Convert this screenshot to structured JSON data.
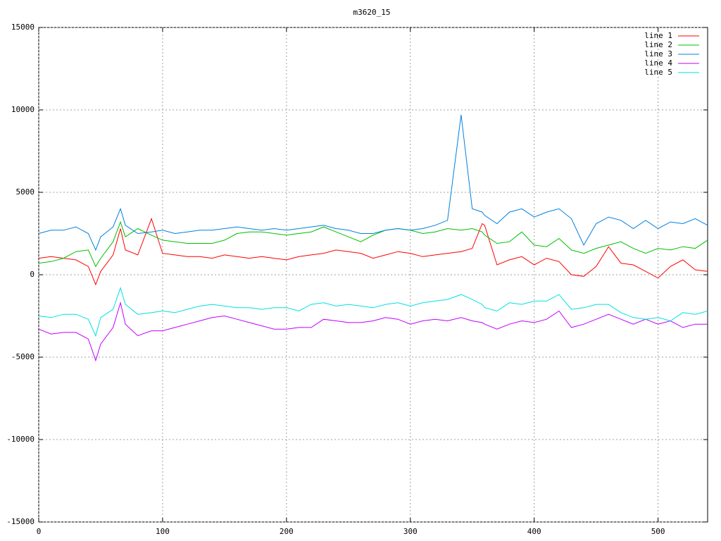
{
  "chart_data": {
    "type": "line",
    "title": "m3620_15",
    "x": [
      0,
      10,
      20,
      30,
      40,
      46,
      50,
      60,
      66,
      70,
      80,
      91,
      100,
      110,
      120,
      130,
      140,
      150,
      160,
      170,
      180,
      190,
      200,
      210,
      220,
      230,
      240,
      250,
      260,
      270,
      280,
      290,
      300,
      310,
      320,
      330,
      341,
      350,
      358,
      360,
      370,
      380,
      390,
      400,
      410,
      420,
      430,
      440,
      450,
      460,
      470,
      480,
      490,
      500,
      510,
      520,
      530,
      540
    ],
    "series": [
      {
        "name": "line 1",
        "color": "#ff0000",
        "values": [
          1000,
          1100,
          1000,
          900,
          500,
          -600,
          200,
          1200,
          2800,
          1500,
          1200,
          3400,
          1300,
          1200,
          1100,
          1100,
          1000,
          1200,
          1100,
          1000,
          1100,
          1000,
          900,
          1100,
          1200,
          1300,
          1500,
          1400,
          1300,
          1000,
          1200,
          1400,
          1300,
          1100,
          1200,
          1300,
          1400,
          1600,
          3100,
          3000,
          600,
          900,
          1100,
          600,
          1000,
          800,
          0,
          -100,
          500,
          1700,
          700,
          600,
          200,
          -200,
          500,
          900,
          300,
          200
        ]
      },
      {
        "name": "line 2",
        "color": "#00c000",
        "values": [
          700,
          800,
          1000,
          1400,
          1500,
          500,
          1000,
          2000,
          3200,
          2300,
          2800,
          2400,
          2100,
          2000,
          1900,
          1900,
          1900,
          2100,
          2500,
          2600,
          2600,
          2500,
          2400,
          2500,
          2600,
          2900,
          2600,
          2300,
          2000,
          2400,
          2700,
          2800,
          2700,
          2500,
          2600,
          2800,
          2700,
          2800,
          2600,
          2400,
          1900,
          2000,
          2600,
          1800,
          1700,
          2200,
          1500,
          1300,
          1600,
          1800,
          2000,
          1600,
          1300,
          1600,
          1500,
          1700,
          1600,
          2100
        ]
      },
      {
        "name": "line 3",
        "color": "#0080e0",
        "values": [
          2500,
          2700,
          2700,
          2900,
          2500,
          1500,
          2300,
          2900,
          4000,
          3000,
          2500,
          2600,
          2700,
          2500,
          2600,
          2700,
          2700,
          2800,
          2900,
          2800,
          2700,
          2800,
          2700,
          2800,
          2900,
          3000,
          2800,
          2700,
          2500,
          2500,
          2700,
          2800,
          2700,
          2800,
          3000,
          3300,
          9700,
          4000,
          3800,
          3600,
          3100,
          3800,
          4000,
          3500,
          3800,
          4000,
          3400,
          1800,
          3100,
          3500,
          3300,
          2800,
          3300,
          2800,
          3200,
          3100,
          3400,
          3000
        ]
      },
      {
        "name": "line 4",
        "color": "#c000ff",
        "values": [
          -3300,
          -3600,
          -3500,
          -3500,
          -3900,
          -5200,
          -4200,
          -3200,
          -1700,
          -3000,
          -3700,
          -3400,
          -3400,
          -3200,
          -3000,
          -2800,
          -2600,
          -2500,
          -2700,
          -2900,
          -3100,
          -3300,
          -3300,
          -3200,
          -3200,
          -2700,
          -2800,
          -2900,
          -2900,
          -2800,
          -2600,
          -2700,
          -3000,
          -2800,
          -2700,
          -2800,
          -2600,
          -2800,
          -2900,
          -3000,
          -3300,
          -3000,
          -2800,
          -2900,
          -2700,
          -2200,
          -3200,
          -3000,
          -2700,
          -2400,
          -2700,
          -3000,
          -2700,
          -3000,
          -2800,
          -3200,
          -3000,
          -3000
        ]
      },
      {
        "name": "line 5",
        "color": "#00e0e0",
        "values": [
          -2500,
          -2600,
          -2400,
          -2400,
          -2700,
          -3700,
          -2600,
          -2100,
          -800,
          -1800,
          -2400,
          -2300,
          -2200,
          -2300,
          -2100,
          -1900,
          -1800,
          -1900,
          -2000,
          -2000,
          -2100,
          -2000,
          -2000,
          -2200,
          -1800,
          -1700,
          -1900,
          -1800,
          -1900,
          -2000,
          -1800,
          -1700,
          -1900,
          -1700,
          -1600,
          -1500,
          -1200,
          -1500,
          -1800,
          -2000,
          -2200,
          -1700,
          -1800,
          -1600,
          -1600,
          -1200,
          -2100,
          -2000,
          -1800,
          -1800,
          -2300,
          -2600,
          -2700,
          -2600,
          -2800,
          -2300,
          -2400,
          -2200
        ]
      }
    ],
    "xlim": [
      0,
      540
    ],
    "xticks": [
      0,
      100,
      200,
      300,
      400,
      500
    ],
    "ylim": [
      -15000,
      15000
    ],
    "yticks": [
      -15000,
      -10000,
      -5000,
      0,
      5000,
      10000,
      15000
    ],
    "grid": true,
    "legend": "top-right"
  }
}
